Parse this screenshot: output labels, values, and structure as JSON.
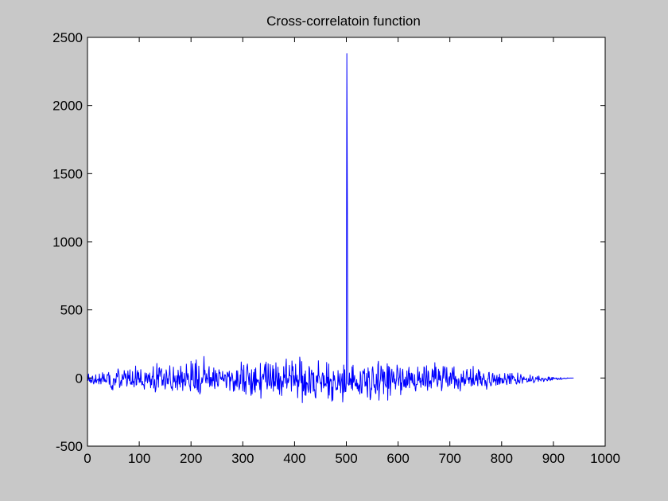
{
  "chart_data": {
    "type": "line",
    "title": "Cross-correlatoin function",
    "xlabel": "",
    "ylabel": "",
    "xlim": [
      0,
      1000
    ],
    "ylim": [
      -500,
      2500
    ],
    "xticks": [
      0,
      100,
      200,
      300,
      400,
      500,
      600,
      700,
      800,
      900,
      1000
    ],
    "yticks": [
      -500,
      0,
      500,
      1000,
      1500,
      2000,
      2500
    ],
    "xtick_labels": [
      "0",
      "100",
      "200",
      "300",
      "400",
      "500",
      "600",
      "700",
      "800",
      "900",
      "1000"
    ],
    "ytick_labels": [
      "-500",
      "0",
      "500",
      "1000",
      "1500",
      "2000",
      "2500"
    ],
    "grid": false,
    "series": [
      {
        "color": "#0000ff",
        "x_start": 0,
        "x_step": 1,
        "values": [
          14,
          -18,
          30,
          -11,
          -24,
          2,
          -34,
          -17,
          -33,
          9,
          14,
          -28,
          -44,
          -28,
          -8,
          -29,
          24,
          -36,
          -22,
          -13,
          -10,
          -8,
          -44,
          30,
          -23,
          -4,
          -44,
          -4,
          -1,
          39,
          -27,
          -5,
          28,
          -24,
          -8,
          -29,
          -20,
          -30,
          25,
          20,
          25,
          41,
          -46,
          20,
          -40,
          -68,
          -63,
          -83,
          -55,
          -88,
          -5,
          -6,
          -6,
          -52,
          -8,
          -33,
          34,
          15,
          8,
          67,
          50,
          26,
          -70,
          -58,
          -30,
          -17,
          -55,
          26,
          10,
          -12,
          -6,
          55,
          30,
          -2,
          32,
          6,
          -60,
          -36,
          52,
          -4,
          19,
          -20,
          60,
          -43,
          -46,
          -28,
          -48,
          47,
          -35,
          -24,
          -66,
          -15,
          -1,
          88,
          -52,
          -48,
          38,
          55,
          -10,
          39,
          -34,
          -3,
          -30,
          62,
          -11,
          -52,
          -24,
          -48,
          -47,
          -56,
          -82,
          38,
          -24,
          6,
          35,
          -8,
          -36,
          25,
          19,
          -26,
          37,
          -9,
          -72,
          -9,
          -50,
          13,
          8,
          84,
          -74,
          -40,
          -11,
          -103,
          -87,
          -38,
          107,
          -9,
          23,
          -68,
          69,
          76,
          12,
          43,
          54,
          68,
          -55,
          -15,
          -52,
          2,
          31,
          -33,
          -81,
          -46,
          60,
          37,
          -43,
          -4,
          -44,
          12,
          26,
          90,
          -12,
          -53,
          -75,
          -65,
          -92,
          -16,
          80,
          -30,
          -22,
          16,
          -71,
          -28,
          -26,
          17,
          -87,
          58,
          17,
          -45,
          16,
          -67,
          87,
          31,
          -33,
          43,
          -92,
          -10,
          -26,
          35,
          -45,
          -58,
          -40,
          102,
          21,
          -13,
          33,
          14,
          -34,
          -57,
          -65,
          -95,
          123,
          -13,
          -15,
          105,
          48,
          -57,
          -58,
          -75,
          106,
          -72,
          133,
          47,
          -87,
          -12,
          -103,
          87,
          3,
          -118,
          -104,
          -39,
          -41,
          3,
          -34,
          -6,
          34,
          158,
          25,
          57,
          -17,
          -37,
          32,
          -5,
          -3,
          -38,
          53,
          84,
          -64,
          5,
          -55,
          5,
          -16,
          -60,
          39,
          -21,
          74,
          -53,
          -78,
          56,
          27,
          -26,
          34,
          -45,
          -62,
          -50,
          61,
          35,
          41,
          -7,
          7,
          -13,
          -6,
          49,
          -19,
          -4,
          -25,
          24,
          24,
          12,
          -72,
          -54,
          43,
          35,
          8,
          21,
          50,
          -91,
          8,
          -22,
          -5,
          37,
          18,
          -20,
          -98,
          -25,
          -92,
          -15,
          -28,
          -55,
          53,
          -64,
          53,
          -16,
          -35,
          -86,
          -65,
          23,
          -43,
          118,
          61,
          59,
          -94,
          -21,
          94,
          -101,
          -33,
          -25,
          -119,
          42,
          82,
          103,
          34,
          2,
          -49,
          36,
          -14,
          -78,
          -128,
          61,
          -117,
          -47,
          -16,
          41,
          -88,
          64,
          -104,
          74,
          -54,
          -8,
          -30,
          -16,
          -14,
          -34,
          -36,
          -86,
          108,
          -149,
          -40,
          5,
          10,
          29,
          -10,
          25,
          76,
          101,
          -29,
          117,
          -20,
          -81,
          -48,
          105,
          -3,
          -56,
          -53,
          99,
          24,
          -76,
          -50,
          11,
          92,
          -97,
          66,
          -60,
          -27,
          -57,
          112,
          5,
          -27,
          -79,
          80,
          -86,
          36,
          -120,
          -9,
          12,
          -47,
          -129,
          -21,
          -32,
          -66,
          84,
          4,
          23,
          -39,
          80,
          140,
          -75,
          -35,
          -2,
          -35,
          -15,
          93,
          16,
          16,
          15,
          -97,
          125,
          54,
          84,
          -56,
          17,
          -33,
          -54,
          101,
          -16,
          -29,
          21,
          -145,
          -14,
          -62,
          -13,
          154,
          115,
          -15,
          -37,
          121,
          -181,
          14,
          -96,
          -73,
          30,
          -125,
          52,
          -128,
          -31,
          -44,
          -38,
          -83,
          -105,
          85,
          69,
          -81,
          -110,
          24,
          59,
          23,
          35,
          -98,
          39,
          -93,
          -85,
          -140,
          -147,
          14,
          -26,
          19,
          -37,
          127,
          19,
          7,
          -10,
          -43,
          -32,
          -102,
          8,
          38,
          33,
          -73,
          18,
          -59,
          -48,
          -42,
          -60,
          114,
          -38,
          6,
          -149,
          103,
          -126,
          -34,
          -6,
          -22,
          -11,
          -170,
          -67,
          -163,
          48,
          -17,
          17,
          -19,
          -51,
          -87,
          -87,
          -70,
          -83,
          55,
          -22,
          -54,
          7,
          32,
          -108,
          -38,
          -6,
          32,
          -176,
          -93,
          95,
          -104,
          61,
          -99,
          -100,
          -33,
          2380,
          1290,
          -41,
          -46,
          -54,
          37,
          -48,
          -3,
          -13,
          -76,
          82,
          -89,
          94,
          -32,
          -10,
          19,
          -56,
          -40,
          -62,
          -11,
          -79,
          -39,
          -97,
          -61,
          -50,
          -118,
          47,
          19,
          -108,
          -111,
          -28,
          53,
          42,
          32,
          66,
          -61,
          -29,
          -57,
          34,
          -76,
          -140,
          75,
          5,
          47,
          -40,
          -160,
          -142,
          -74,
          -86,
          63,
          83,
          34,
          -51,
          -70,
          -48,
          -102,
          -115,
          29,
          -32,
          -89,
          98,
          123,
          -163,
          -70,
          -35,
          -6,
          89,
          71,
          -23,
          18,
          62,
          -116,
          44,
          42,
          -45,
          -56,
          -68,
          -36,
          105,
          -163,
          86,
          -76,
          81,
          50,
          -128,
          -30,
          34,
          65,
          -31,
          -30,
          45,
          19,
          -40,
          -7,
          -81,
          -32,
          -13,
          95,
          70,
          31,
          -54,
          -6,
          10,
          71,
          -123,
          -35,
          -88,
          38,
          65,
          -17,
          -63,
          -11,
          -64,
          7,
          -72,
          -64,
          52,
          -53,
          -40,
          49,
          79,
          -72,
          35,
          -8,
          -17,
          36,
          -35,
          32,
          -45,
          -42,
          -58,
          25,
          -79,
          -96,
          -48,
          -46,
          -49,
          81,
          -20,
          -12,
          45,
          -33,
          0,
          -69,
          -22,
          -22,
          31,
          -48,
          -52,
          82,
          74,
          -61,
          -55,
          3,
          90,
          -36,
          -91,
          52,
          37,
          -64,
          -22,
          -40,
          -19,
          -74,
          -9,
          66,
          8,
          56,
          -30,
          -6,
          113,
          -5,
          80,
          6,
          -30,
          -63,
          -39,
          65,
          -14,
          50,
          -18,
          17,
          -16,
          -94,
          -66,
          -2,
          85,
          -2,
          49,
          83,
          63,
          -16,
          -33,
          77,
          -16,
          -63,
          -50,
          -2,
          10,
          -53,
          38,
          31,
          -42,
          -10,
          74,
          36,
          -9,
          83,
          -75,
          -6,
          13,
          -52,
          -13,
          -9,
          -59,
          -79,
          -4,
          -25,
          -39,
          -96,
          -34,
          30,
          -31,
          4,
          -32,
          52,
          -23,
          -55,
          -7,
          -42,
          -15,
          42,
          63,
          10,
          -14,
          3,
          -40,
          5,
          -10,
          65,
          -59,
          -20,
          0,
          -54,
          86,
          -40,
          -49,
          -28,
          -9,
          20,
          -18,
          34,
          -19,
          -57,
          62,
          51,
          -12,
          46,
          -40,
          11,
          -46,
          -56,
          0,
          -13,
          32,
          11,
          -12,
          -56,
          -18,
          -32,
          -83,
          -54,
          -5,
          -8,
          39,
          42,
          -35,
          -33,
          -58,
          -53,
          -22,
          25,
          35,
          -30,
          -21,
          20,
          -21,
          -10,
          -53,
          -2,
          20,
          -48,
          -14,
          6,
          -47,
          29,
          -40,
          -1,
          -7,
          -4,
          -38,
          -3,
          -37,
          -34,
          -11,
          34,
          -10,
          -8,
          -28,
          -49,
          -7,
          29,
          -3,
          14,
          -42,
          33,
          -6,
          -43,
          6,
          34,
          -8,
          14,
          7,
          6,
          -19,
          -13,
          -11,
          -41,
          -45,
          -25,
          37,
          -28,
          -17,
          -35,
          -38,
          4,
          26,
          6,
          -5,
          -39,
          2,
          -13,
          9,
          -9,
          -12,
          -13,
          -11,
          0,
          -30,
          -25,
          -26,
          -4,
          -24,
          -20,
          22,
          -22,
          -22,
          -16,
          -3,
          12,
          -19,
          -35,
          -29,
          -24,
          -11,
          4,
          -2,
          -10,
          12,
          -7,
          -25,
          15,
          -11,
          -14,
          -13,
          -22,
          -3,
          -1,
          -9,
          -3,
          -26,
          -21,
          -7,
          -3,
          -11,
          -7,
          -12,
          -21,
          -17,
          8,
          -12,
          7,
          0,
          -20,
          -7,
          -13,
          5,
          -15,
          4,
          4,
          -7,
          -1,
          -4,
          -4,
          1,
          -7,
          -1,
          -13,
          -10,
          -2,
          -5,
          -10,
          -6,
          4,
          -11,
          -7,
          -7,
          -5,
          -2,
          -4,
          0,
          -2,
          -6,
          -3,
          -2,
          -4,
          1,
          -1,
          0,
          -2,
          -1,
          0,
          0,
          -1,
          0,
          0,
          0,
          0,
          0
        ]
      }
    ]
  }
}
